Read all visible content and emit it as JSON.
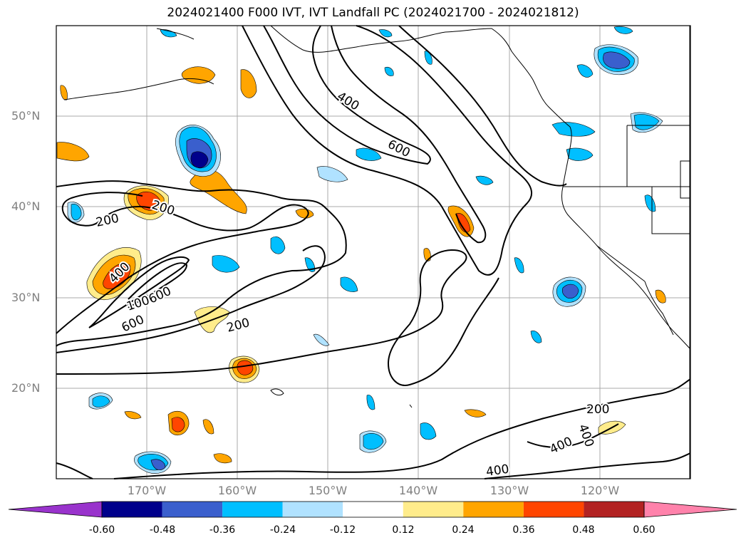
{
  "title": "2024021400 F000 IVT, IVT Landfall PC (2024021700 - 2024021812)",
  "lat_labels": [
    "50°N",
    "40°N",
    "30°N",
    "20°N"
  ],
  "lon_labels": [
    "170°W",
    "160°W",
    "150°W",
    "140°W",
    "130°W",
    "120°W"
  ],
  "contour_labels": [
    "400",
    "600",
    "200",
    "200",
    "400",
    "1000",
    "600",
    "600",
    "200",
    "200",
    "400",
    "400",
    "400"
  ],
  "colorbar": {
    "tick_labels": [
      "-0.60",
      "-0.48",
      "-0.36",
      "-0.24",
      "-0.12",
      "0.12",
      "0.24",
      "0.36",
      "0.48",
      "0.60"
    ],
    "colors": [
      "#9933cc",
      "#00008b",
      "#3a5fcd",
      "#00bfff",
      "#b0e2ff",
      "#ffffff",
      "#ffec8b",
      "#ffa500",
      "#ff4500",
      "#b22222",
      "#ff82ab"
    ]
  },
  "colors": {
    "grid": "#a9a9a9",
    "contour": "#000000",
    "axis_label": "#808080"
  }
}
